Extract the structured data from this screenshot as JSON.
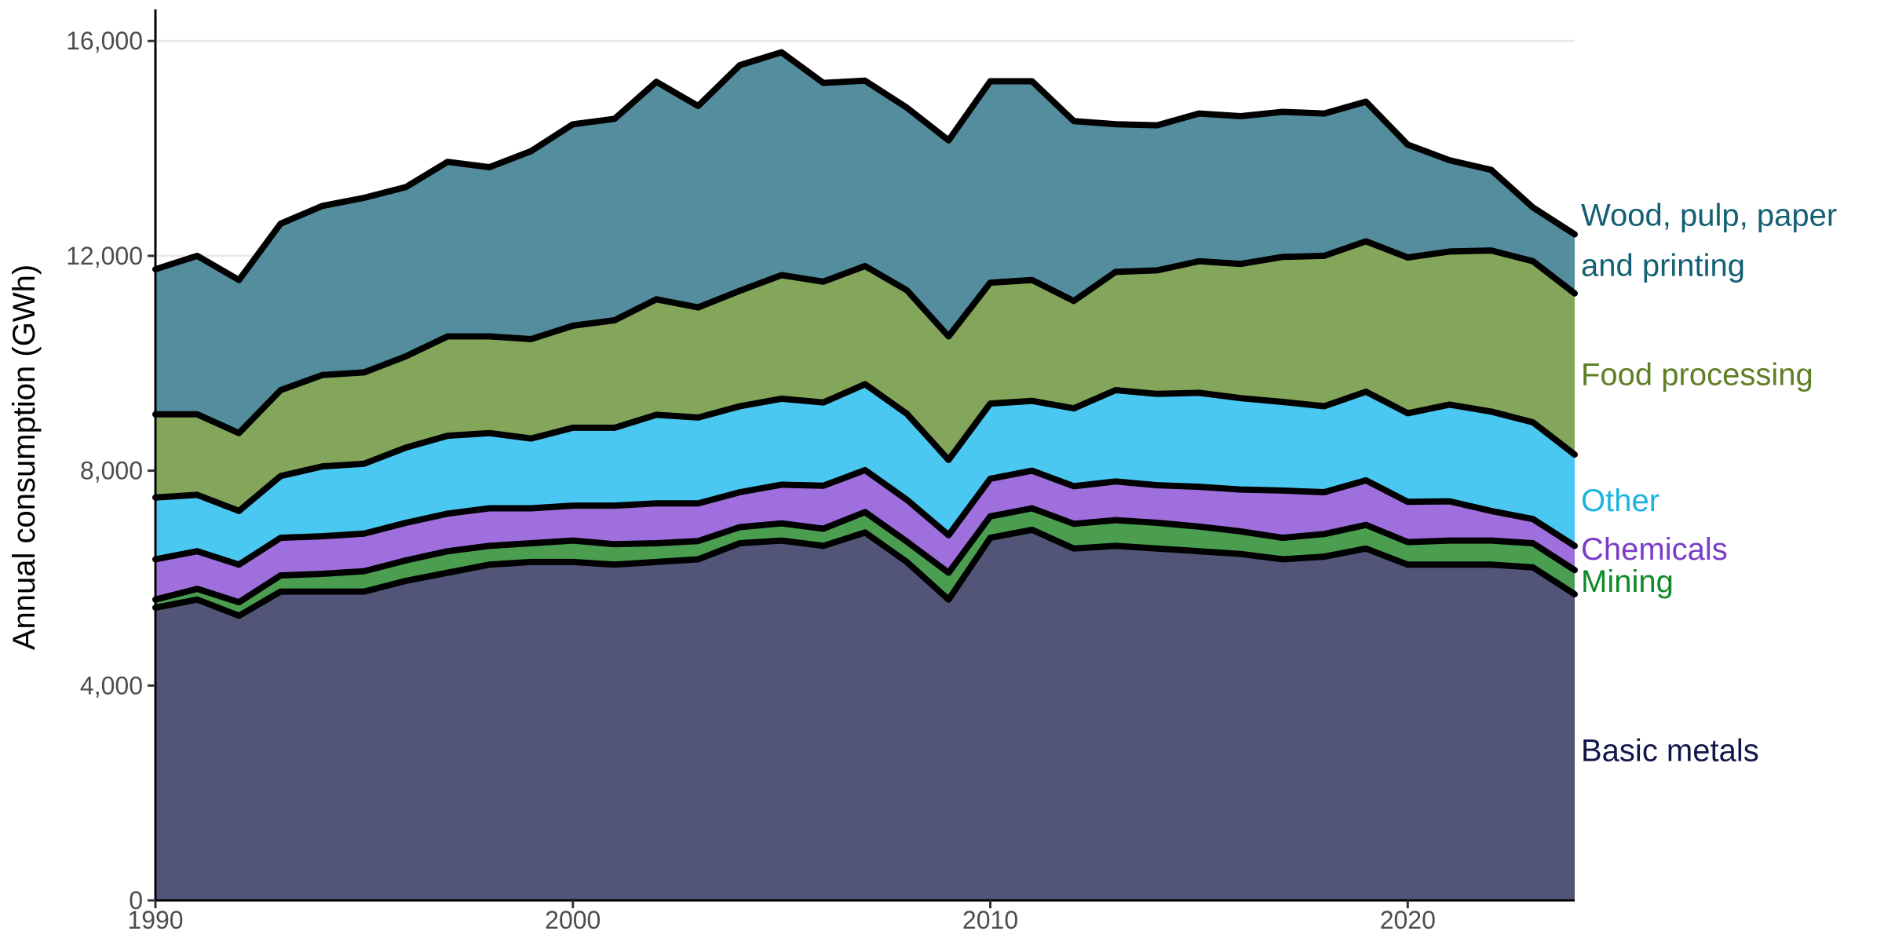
{
  "chart_data": {
    "type": "area",
    "stacked": true,
    "xlabel": "",
    "ylabel": "Annual consumption (GWh)",
    "xlim": [
      1990,
      2024
    ],
    "ylim": [
      0,
      16500
    ],
    "x_ticks": [
      1990,
      2000,
      2010,
      2020
    ],
    "x_tick_labels": [
      "1990",
      "2000",
      "2010",
      "2020"
    ],
    "y_ticks": [
      0,
      4000,
      8000,
      12000,
      16000
    ],
    "y_tick_labels": [
      "0",
      "4,000",
      "8,000",
      "12,000",
      "16,000"
    ],
    "grid": "horizontal major gridlines",
    "legend": "direct labels at right end of series",
    "x": [
      1990,
      1991,
      1992,
      1993,
      1994,
      1995,
      1996,
      1997,
      1998,
      1999,
      2000,
      2001,
      2002,
      2003,
      2004,
      2005,
      2006,
      2007,
      2008,
      2009,
      2010,
      2011,
      2012,
      2013,
      2014,
      2015,
      2016,
      2017,
      2018,
      2019,
      2020,
      2021,
      2022,
      2023,
      2024
    ],
    "series": [
      {
        "name": "Basic metals",
        "fill_color": "#525578",
        "label_color": "#12164a",
        "label_lines": [
          "Basic metals"
        ],
        "values": [
          5450,
          5600,
          5300,
          5750,
          5750,
          5750,
          5950,
          6100,
          6250,
          6300,
          6300,
          6250,
          6300,
          6350,
          6650,
          6700,
          6600,
          6850,
          6300,
          5600,
          6750,
          6900,
          6550,
          6600,
          6550,
          6500,
          6450,
          6350,
          6400,
          6550,
          6250,
          6250,
          6250,
          6200,
          5700
        ]
      },
      {
        "name": "Mining",
        "fill_color": "#4b9e50",
        "label_color": "#0e8a28",
        "label_lines": [
          "Mining"
        ],
        "values": [
          150,
          200,
          250,
          300,
          330,
          380,
          380,
          400,
          350,
          350,
          400,
          380,
          350,
          340,
          300,
          320,
          320,
          380,
          380,
          500,
          400,
          400,
          460,
          480,
          480,
          460,
          420,
          400,
          420,
          440,
          420,
          450,
          450,
          450,
          450
        ]
      },
      {
        "name": "Chemicals",
        "fill_color": "#9f6fdd",
        "label_color": "#7a3cc8",
        "label_lines": [
          "Chemicals"
        ],
        "values": [
          750,
          700,
          700,
          700,
          700,
          700,
          700,
          700,
          700,
          650,
          650,
          720,
          740,
          700,
          650,
          720,
          800,
          780,
          780,
          700,
          700,
          700,
          700,
          720,
          700,
          740,
          780,
          880,
          780,
          830,
          750,
          730,
          550,
          450,
          450
        ]
      },
      {
        "name": "Other",
        "fill_color": "#4bc8f1",
        "label_color": "#1cb4de",
        "label_lines": [
          "Other"
        ],
        "values": [
          1150,
          1050,
          1000,
          1150,
          1300,
          1300,
          1400,
          1450,
          1400,
          1300,
          1450,
          1450,
          1650,
          1600,
          1600,
          1600,
          1550,
          1600,
          1600,
          1400,
          1400,
          1300,
          1450,
          1700,
          1700,
          1750,
          1700,
          1650,
          1600,
          1650,
          1650,
          1800,
          1850,
          1800,
          1700
        ]
      },
      {
        "name": "Food processing",
        "fill_color": "#84a65a",
        "label_color": "#5e7f24",
        "label_lines": [
          "Food processing"
        ],
        "values": [
          1550,
          1500,
          1450,
          1600,
          1700,
          1700,
          1700,
          1850,
          1800,
          1850,
          1900,
          2000,
          2150,
          2050,
          2150,
          2300,
          2250,
          2200,
          2300,
          2300,
          2250,
          2250,
          2000,
          2200,
          2300,
          2450,
          2500,
          2700,
          2800,
          2800,
          2900,
          2850,
          3000,
          3000,
          3000
        ]
      },
      {
        "name": "Wood, pulp, paper and printing",
        "fill_color": "#548e9e",
        "label_color": "#135f73",
        "label_lines": [
          "Wood, pulp, paper",
          "and printing"
        ],
        "values": [
          2700,
          2950,
          2850,
          3100,
          3150,
          3250,
          3150,
          3250,
          3150,
          3500,
          3750,
          3750,
          4050,
          3750,
          4200,
          4150,
          3700,
          3450,
          3400,
          3650,
          3750,
          3700,
          3350,
          2750,
          2700,
          2750,
          2750,
          2700,
          2650,
          2600,
          2100,
          1700,
          1500,
          1000,
          1100
        ]
      }
    ]
  }
}
